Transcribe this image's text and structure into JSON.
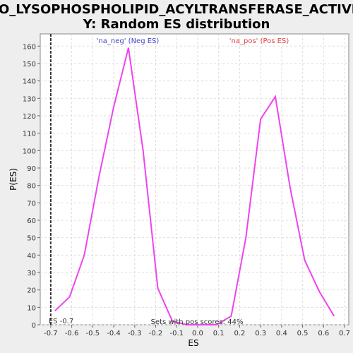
{
  "chart_data": {
    "type": "line",
    "title_lines": [
      "GO_LYSOPHOSPHOLIPID_ACYLTRANSFERASE_ACTIVIT",
      "Y: Random ES distribution"
    ],
    "xlabel": "ES",
    "ylabel": "P(ES)",
    "xlim": [
      -0.75,
      0.72
    ],
    "ylim": [
      0,
      167
    ],
    "x_ticks": [
      -0.7,
      -0.6,
      -0.5,
      -0.4,
      -0.3,
      -0.2,
      -0.1,
      0.0,
      0.1,
      0.2,
      0.3,
      0.4,
      0.5,
      0.6,
      0.7
    ],
    "x_tick_labels": [
      "-0.7",
      "-0.6",
      "-0.5",
      "-0.4",
      "-0.3",
      "-0.2",
      "-0.1",
      "0.0",
      "0.1",
      "0.2",
      "0.3",
      "0.4",
      "0.5",
      "0.6",
      "0.7"
    ],
    "y_ticks": [
      0,
      10,
      20,
      30,
      40,
      50,
      60,
      70,
      80,
      90,
      100,
      110,
      120,
      130,
      140,
      150,
      160
    ],
    "y_tick_labels": [
      "0",
      "10",
      "20",
      "30",
      "40",
      "50",
      "60",
      "70",
      "80",
      "90",
      "100",
      "110",
      "120",
      "130",
      "140",
      "150",
      "160"
    ],
    "grid": true,
    "series": [
      {
        "color": "#ee44ee",
        "x": [
          -0.68,
          -0.61,
          -0.54,
          -0.47,
          -0.4,
          -0.33,
          -0.26,
          -0.19,
          -0.12,
          -0.05,
          0.02,
          0.09,
          0.16,
          0.23,
          0.3,
          0.37,
          0.44,
          0.51,
          0.58,
          0.65
        ],
        "y": [
          8,
          16,
          40,
          85,
          125,
          159,
          100,
          21,
          2,
          0,
          0,
          0,
          5,
          50,
          118,
          131,
          79,
          37,
          19,
          5
        ]
      }
    ],
    "legend": {
      "neg_label": "'na_neg' (Neg ES)",
      "neg_color": "#4444cc",
      "pos_label": "'na_pos' (Pos ES)",
      "pos_color": "#dd4444"
    },
    "es_marker": {
      "x": -0.7,
      "label": "ES -0.7"
    },
    "annotation": "Sets with pos scores: 44%"
  }
}
